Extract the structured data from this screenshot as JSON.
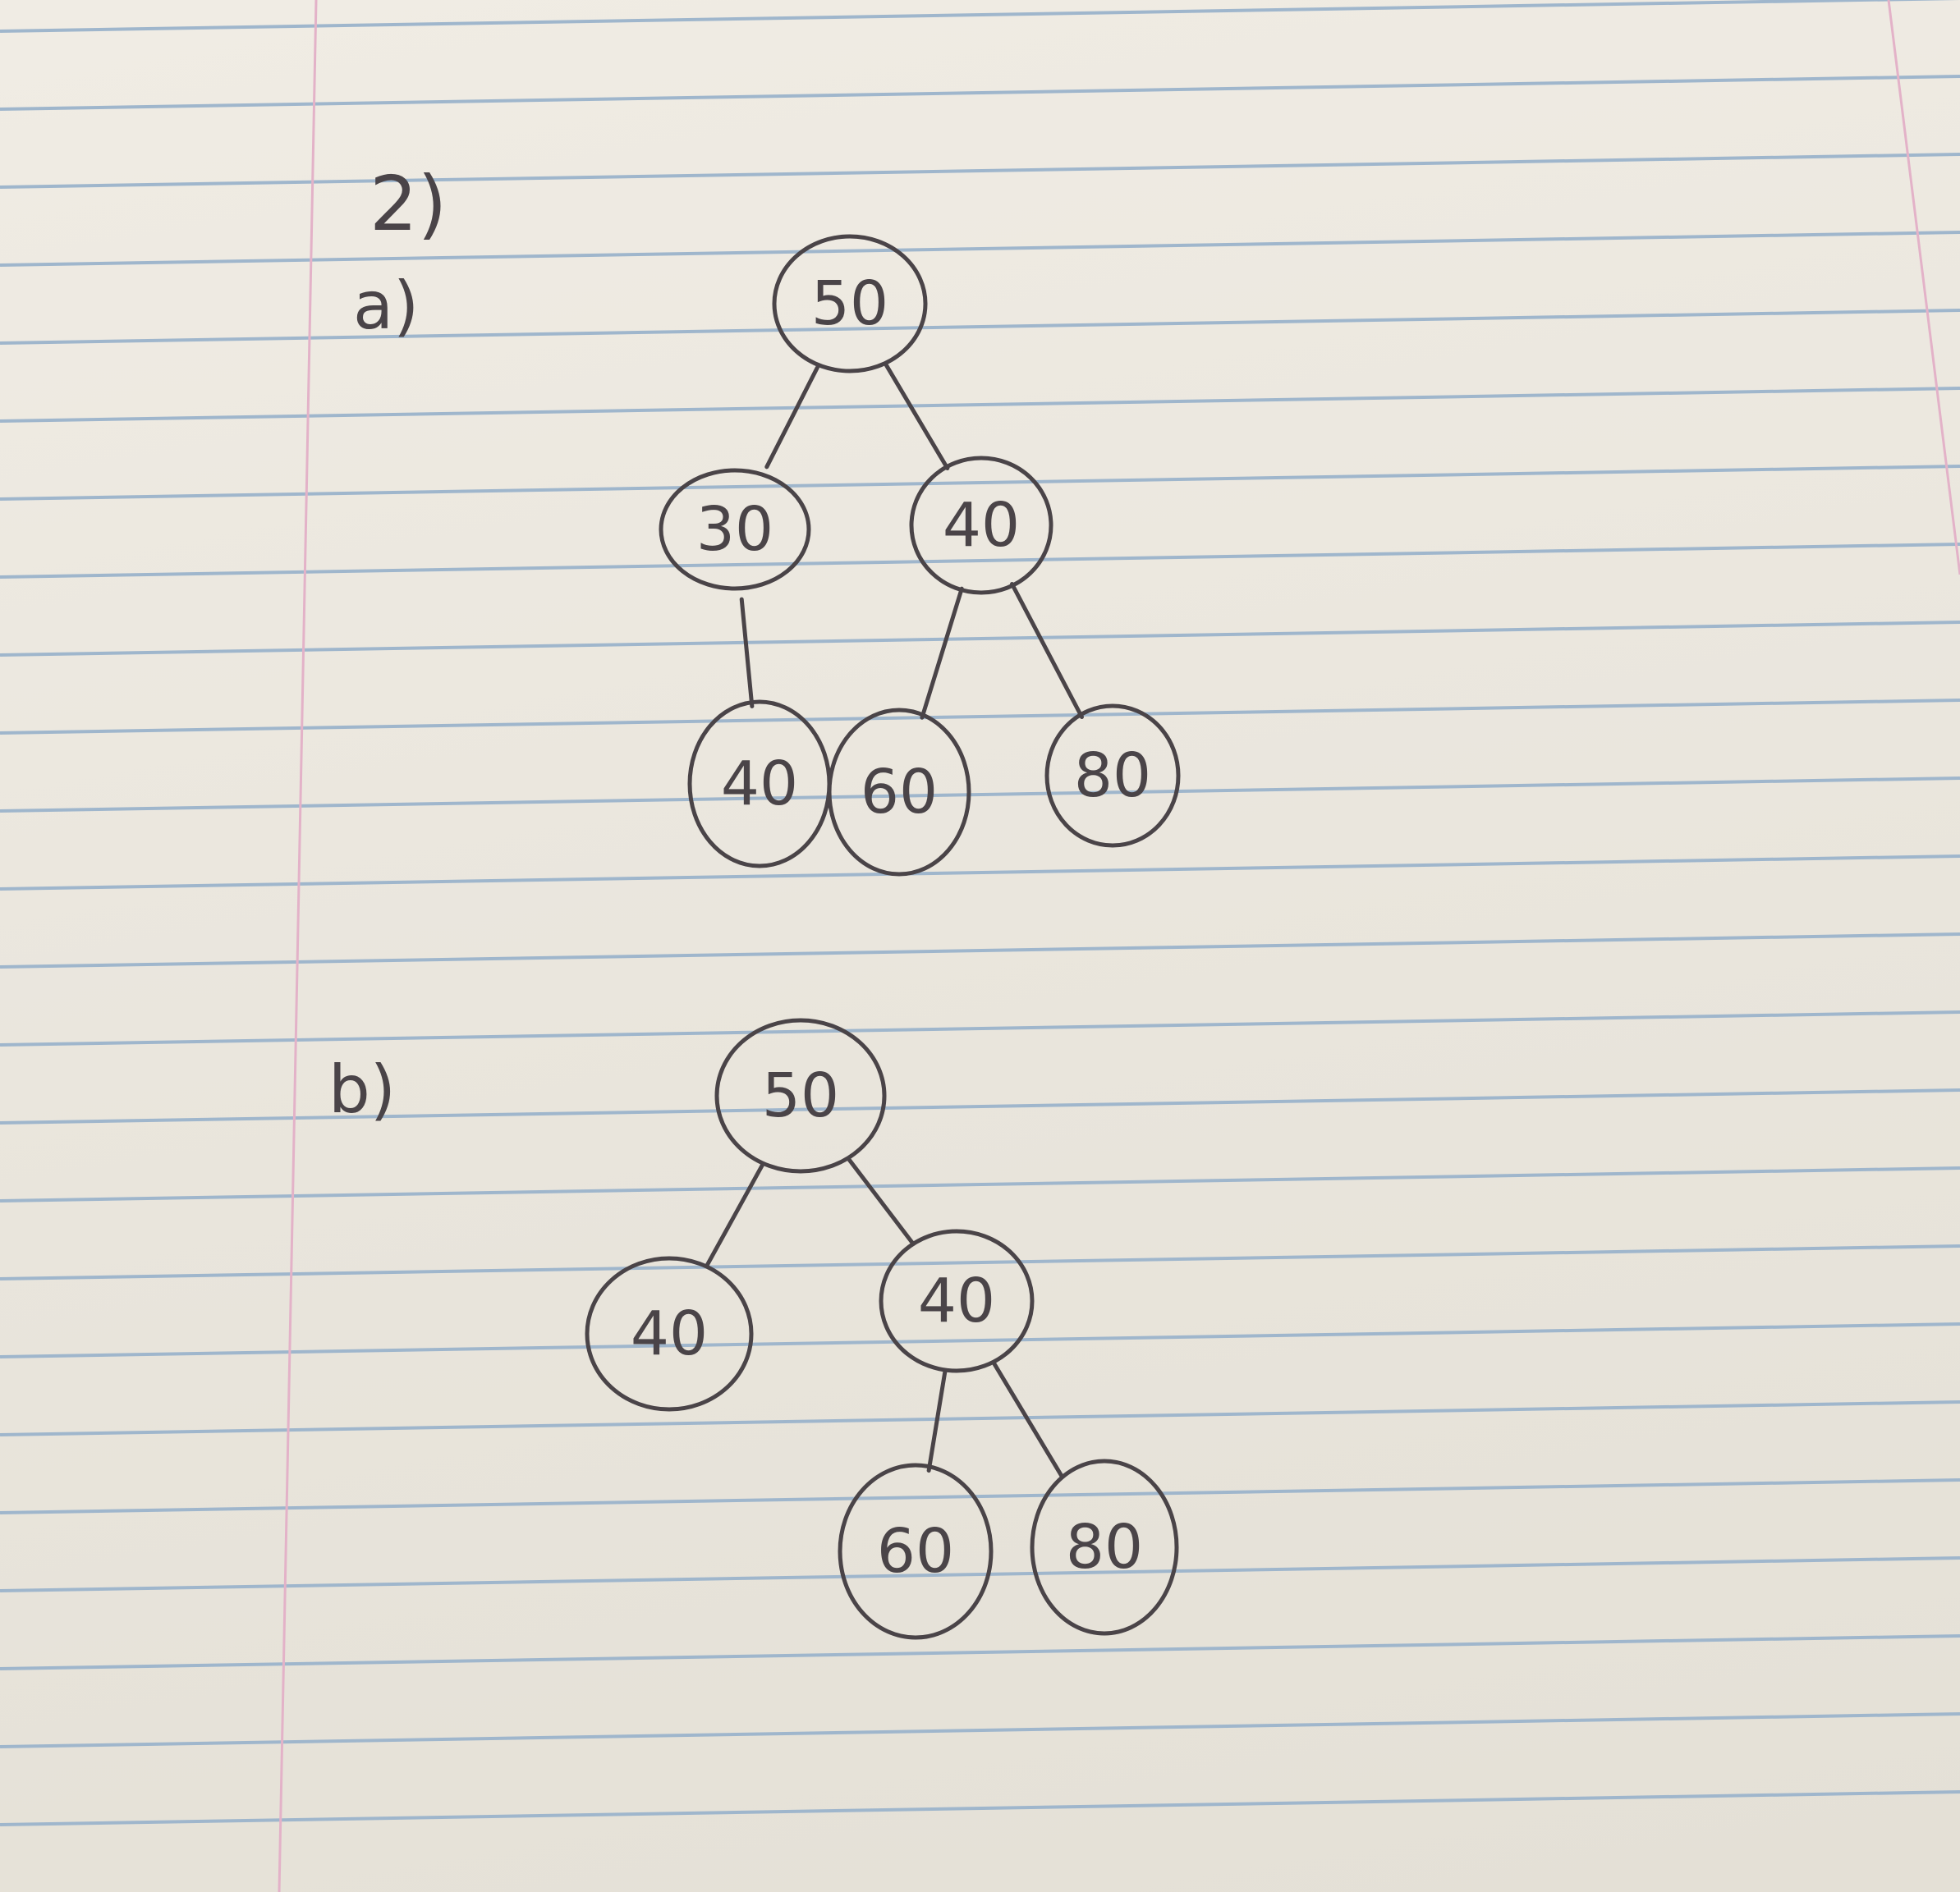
{
  "question_label": "2)",
  "parts": [
    {
      "label": "a)",
      "nodes": [
        {
          "id": "a-root",
          "value": "50"
        },
        {
          "id": "a-left",
          "value": "30"
        },
        {
          "id": "a-right",
          "value": "40"
        },
        {
          "id": "a-ll",
          "value": "40"
        },
        {
          "id": "a-rl",
          "value": "60"
        },
        {
          "id": "a-rr",
          "value": "80"
        }
      ],
      "edges": [
        [
          "a-root",
          "a-left"
        ],
        [
          "a-root",
          "a-right"
        ],
        [
          "a-left",
          "a-ll"
        ],
        [
          "a-right",
          "a-rl"
        ],
        [
          "a-right",
          "a-rr"
        ]
      ]
    },
    {
      "label": "b)",
      "nodes": [
        {
          "id": "b-root",
          "value": "50"
        },
        {
          "id": "b-left",
          "value": "40"
        },
        {
          "id": "b-right",
          "value": "40"
        },
        {
          "id": "b-rl",
          "value": "60"
        },
        {
          "id": "b-rr",
          "value": "80"
        }
      ],
      "edges": [
        [
          "b-root",
          "b-left"
        ],
        [
          "b-root",
          "b-right"
        ],
        [
          "b-right",
          "b-rl"
        ],
        [
          "b-right",
          "b-rr"
        ]
      ]
    }
  ]
}
